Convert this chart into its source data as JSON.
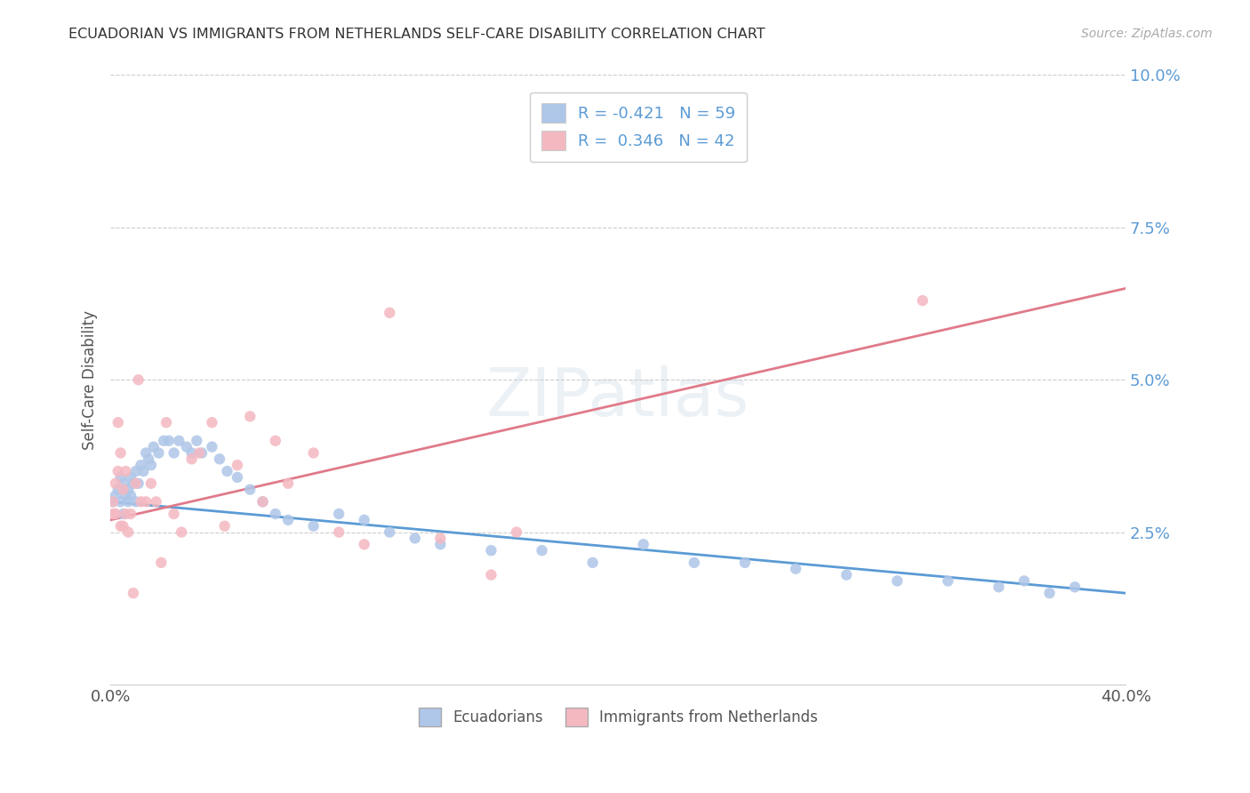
{
  "title": "ECUADORIAN VS IMMIGRANTS FROM NETHERLANDS SELF-CARE DISABILITY CORRELATION CHART",
  "source": "Source: ZipAtlas.com",
  "ylabel": "Self-Care Disability",
  "x_min": 0.0,
  "x_max": 0.4,
  "y_min": 0.0,
  "y_max": 0.1,
  "x_ticks": [
    0.0,
    0.08,
    0.16,
    0.24,
    0.32,
    0.4
  ],
  "x_tick_labels": [
    "0.0%",
    "",
    "",
    "",
    "",
    "40.0%"
  ],
  "y_ticks_right": [
    0.025,
    0.05,
    0.075,
    0.1
  ],
  "y_tick_labels_right": [
    "2.5%",
    "5.0%",
    "7.5%",
    "10.0%"
  ],
  "blue_color": "#aec6e8",
  "pink_color": "#f4b8c1",
  "blue_line_color": "#5b9bd5",
  "pink_line_color": "#e07a8a",
  "legend_blue_label": "R = -0.421   N = 59",
  "legend_pink_label": "R =  0.346   N = 42",
  "ecuadorians_label": "Ecuadorians",
  "netherlands_label": "Immigrants from Netherlands",
  "background_color": "#ffffff",
  "grid_color": "#cccccc",
  "title_color": "#333333",
  "blue_scatter_x": [
    0.001,
    0.002,
    0.003,
    0.004,
    0.004,
    0.005,
    0.005,
    0.006,
    0.007,
    0.007,
    0.008,
    0.008,
    0.009,
    0.01,
    0.01,
    0.011,
    0.012,
    0.013,
    0.014,
    0.015,
    0.016,
    0.017,
    0.019,
    0.021,
    0.023,
    0.025,
    0.027,
    0.03,
    0.032,
    0.034,
    0.036,
    0.04,
    0.043,
    0.046,
    0.05,
    0.055,
    0.06,
    0.065,
    0.07,
    0.08,
    0.09,
    0.1,
    0.11,
    0.12,
    0.13,
    0.15,
    0.17,
    0.19,
    0.21,
    0.23,
    0.25,
    0.27,
    0.29,
    0.31,
    0.33,
    0.35,
    0.36,
    0.37,
    0.38
  ],
  "blue_scatter_y": [
    0.03,
    0.031,
    0.032,
    0.03,
    0.034,
    0.028,
    0.033,
    0.031,
    0.032,
    0.03,
    0.034,
    0.031,
    0.033,
    0.035,
    0.03,
    0.033,
    0.036,
    0.035,
    0.038,
    0.037,
    0.036,
    0.039,
    0.038,
    0.04,
    0.04,
    0.038,
    0.04,
    0.039,
    0.038,
    0.04,
    0.038,
    0.039,
    0.037,
    0.035,
    0.034,
    0.032,
    0.03,
    0.028,
    0.027,
    0.026,
    0.028,
    0.027,
    0.025,
    0.024,
    0.023,
    0.022,
    0.022,
    0.02,
    0.023,
    0.02,
    0.02,
    0.019,
    0.018,
    0.017,
    0.017,
    0.016,
    0.017,
    0.015,
    0.016
  ],
  "pink_scatter_x": [
    0.001,
    0.001,
    0.002,
    0.002,
    0.003,
    0.003,
    0.004,
    0.004,
    0.005,
    0.005,
    0.006,
    0.006,
    0.007,
    0.008,
    0.009,
    0.01,
    0.011,
    0.012,
    0.014,
    0.016,
    0.018,
    0.02,
    0.022,
    0.025,
    0.028,
    0.032,
    0.035,
    0.04,
    0.045,
    0.05,
    0.055,
    0.06,
    0.065,
    0.07,
    0.08,
    0.09,
    0.1,
    0.11,
    0.13,
    0.15,
    0.32,
    0.16
  ],
  "pink_scatter_y": [
    0.028,
    0.03,
    0.033,
    0.028,
    0.043,
    0.035,
    0.038,
    0.026,
    0.026,
    0.032,
    0.028,
    0.035,
    0.025,
    0.028,
    0.015,
    0.033,
    0.05,
    0.03,
    0.03,
    0.033,
    0.03,
    0.02,
    0.043,
    0.028,
    0.025,
    0.037,
    0.038,
    0.043,
    0.026,
    0.036,
    0.044,
    0.03,
    0.04,
    0.033,
    0.038,
    0.025,
    0.023,
    0.061,
    0.024,
    0.018,
    0.063,
    0.025
  ],
  "blue_line_x0": 0.0,
  "blue_line_x1": 0.4,
  "blue_line_y0": 0.03,
  "blue_line_y1": 0.015,
  "pink_line_x0": 0.0,
  "pink_line_x1": 0.4,
  "pink_line_y0": 0.027,
  "pink_line_y1": 0.065
}
